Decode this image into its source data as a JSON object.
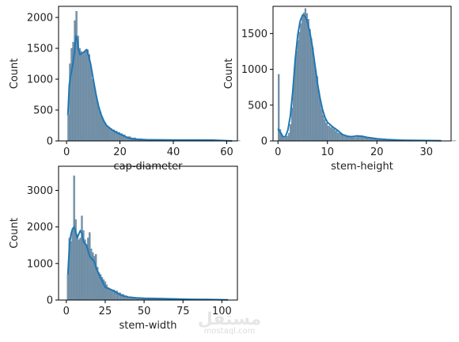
{
  "watermark": {
    "logo": "مستقل",
    "site": "mostaql.com"
  },
  "colors": {
    "bar_fill": "#7895ab",
    "bar_stroke": "#5c7e98",
    "kde": "#1f77b4",
    "axes": "#000000"
  },
  "chart_data": [
    {
      "type": "histogram",
      "xlabel": "cap-diameter",
      "ylabel": "Count",
      "xlim": [
        -3,
        64
      ],
      "ylim": [
        0,
        2180
      ],
      "xticks": [
        0,
        20,
        40,
        60
      ],
      "yticks": [
        0,
        500,
        1000,
        1500,
        2000
      ],
      "bins": [
        [
          0.4,
          420
        ],
        [
          1.0,
          1250
        ],
        [
          1.6,
          1500
        ],
        [
          2.2,
          1600
        ],
        [
          2.8,
          1950
        ],
        [
          3.4,
          2100
        ],
        [
          4.0,
          1700
        ],
        [
          4.6,
          1500
        ],
        [
          5.2,
          1450
        ],
        [
          5.8,
          1400
        ],
        [
          6.4,
          1450
        ],
        [
          7.0,
          1450
        ],
        [
          7.6,
          1480
        ],
        [
          8.2,
          1400
        ],
        [
          8.8,
          1200
        ],
        [
          9.4,
          1000
        ],
        [
          10.0,
          900
        ],
        [
          10.6,
          760
        ],
        [
          11.2,
          640
        ],
        [
          11.8,
          540
        ],
        [
          12.4,
          470
        ],
        [
          13.0,
          390
        ],
        [
          13.6,
          330
        ],
        [
          14.2,
          290
        ],
        [
          14.8,
          250
        ],
        [
          15.4,
          220
        ],
        [
          16.0,
          200
        ],
        [
          17.0,
          180
        ],
        [
          18.0,
          160
        ],
        [
          19.0,
          140
        ],
        [
          20.0,
          120
        ],
        [
          21.0,
          100
        ],
        [
          22.0,
          70
        ],
        [
          24.0,
          50
        ],
        [
          26.0,
          35
        ],
        [
          28.0,
          25
        ],
        [
          32.0,
          15
        ],
        [
          36.0,
          10
        ],
        [
          40.0,
          8
        ],
        [
          45.0,
          10
        ],
        [
          50.0,
          15
        ],
        [
          55.0,
          10
        ],
        [
          60.0,
          5
        ]
      ],
      "kde": [
        [
          0.5,
          420
        ],
        [
          1,
          900
        ],
        [
          1.5,
          1050
        ],
        [
          2,
          1150
        ],
        [
          2.5,
          1280
        ],
        [
          3,
          1450
        ],
        [
          3.5,
          1700
        ],
        [
          4,
          1640
        ],
        [
          4.5,
          1480
        ],
        [
          5,
          1400
        ],
        [
          6,
          1420
        ],
        [
          7,
          1460
        ],
        [
          7.5,
          1480
        ],
        [
          8,
          1420
        ],
        [
          9,
          1250
        ],
        [
          10,
          1000
        ],
        [
          11,
          760
        ],
        [
          12,
          560
        ],
        [
          13,
          420
        ],
        [
          14,
          320
        ],
        [
          15,
          250
        ],
        [
          17,
          180
        ],
        [
          19,
          130
        ],
        [
          21,
          90
        ],
        [
          23,
          50
        ],
        [
          25,
          30
        ],
        [
          30,
          20
        ],
        [
          40,
          15
        ],
        [
          50,
          15
        ],
        [
          55,
          12
        ],
        [
          62,
          0
        ]
      ]
    },
    {
      "type": "histogram",
      "xlabel": "stem-height",
      "ylabel": "Count",
      "xlim": [
        -1,
        35
      ],
      "ylim": [
        0,
        1880
      ],
      "xticks": [
        0,
        10,
        20,
        30
      ],
      "yticks": [
        0,
        500,
        1000,
        1500
      ],
      "bins": [
        [
          0.0,
          930
        ],
        [
          0.3,
          160
        ],
        [
          0.6,
          100
        ],
        [
          0.9,
          60
        ],
        [
          1.2,
          40
        ],
        [
          1.5,
          60
        ],
        [
          1.8,
          70
        ],
        [
          2.1,
          110
        ],
        [
          2.4,
          230
        ],
        [
          2.7,
          460
        ],
        [
          3.0,
          780
        ],
        [
          3.3,
          1050
        ],
        [
          3.6,
          1250
        ],
        [
          3.9,
          1400
        ],
        [
          4.2,
          1520
        ],
        [
          4.5,
          1640
        ],
        [
          4.8,
          1730
        ],
        [
          5.1,
          1790
        ],
        [
          5.4,
          1850
        ],
        [
          5.7,
          1780
        ],
        [
          6.0,
          1700
        ],
        [
          6.3,
          1560
        ],
        [
          6.6,
          1430
        ],
        [
          6.9,
          1300
        ],
        [
          7.2,
          1100
        ],
        [
          7.5,
          980
        ],
        [
          7.8,
          900
        ],
        [
          8.1,
          700
        ],
        [
          8.4,
          560
        ],
        [
          8.7,
          440
        ],
        [
          9.0,
          360
        ],
        [
          9.3,
          300
        ],
        [
          9.6,
          250
        ],
        [
          10.0,
          210
        ],
        [
          10.5,
          190
        ],
        [
          11.0,
          170
        ],
        [
          11.5,
          140
        ],
        [
          12.0,
          110
        ],
        [
          13.0,
          80
        ],
        [
          14.0,
          60
        ],
        [
          15.0,
          50
        ],
        [
          16.0,
          60
        ],
        [
          17.0,
          50
        ],
        [
          18.0,
          40
        ],
        [
          19.0,
          30
        ],
        [
          20.0,
          25
        ],
        [
          22.0,
          15
        ],
        [
          25.0,
          10
        ],
        [
          30.0,
          5
        ],
        [
          33.0,
          3
        ]
      ],
      "kde": [
        [
          0,
          170
        ],
        [
          0.5,
          120
        ],
        [
          1,
          60
        ],
        [
          1.5,
          60
        ],
        [
          2,
          150
        ],
        [
          2.5,
          350
        ],
        [
          3,
          700
        ],
        [
          3.5,
          1150
        ],
        [
          4,
          1480
        ],
        [
          4.5,
          1680
        ],
        [
          5,
          1760
        ],
        [
          5.5,
          1740
        ],
        [
          6,
          1650
        ],
        [
          6.5,
          1500
        ],
        [
          7,
          1300
        ],
        [
          7.5,
          1050
        ],
        [
          8,
          800
        ],
        [
          8.5,
          600
        ],
        [
          9,
          440
        ],
        [
          9.5,
          330
        ],
        [
          10,
          260
        ],
        [
          11,
          200
        ],
        [
          12,
          150
        ],
        [
          13,
          90
        ],
        [
          14,
          65
        ],
        [
          15,
          60
        ],
        [
          16,
          70
        ],
        [
          17,
          65
        ],
        [
          18,
          50
        ],
        [
          20,
          30
        ],
        [
          22,
          20
        ],
        [
          25,
          10
        ],
        [
          30,
          5
        ],
        [
          33,
          3
        ]
      ]
    },
    {
      "type": "histogram",
      "xlabel": "stem-width",
      "ylabel": "Count",
      "xlim": [
        -5,
        110
      ],
      "ylim": [
        0,
        3660
      ],
      "xticks": [
        0,
        25,
        50,
        75,
        100
      ],
      "yticks": [
        0,
        1000,
        2000,
        3000
      ],
      "bins": [
        [
          0.5,
          700
        ],
        [
          1.5,
          1700
        ],
        [
          2.5,
          1600
        ],
        [
          3.5,
          1900
        ],
        [
          4.5,
          3400
        ],
        [
          5.5,
          2200
        ],
        [
          6.5,
          1800
        ],
        [
          7.5,
          1650
        ],
        [
          8.5,
          1700
        ],
        [
          9.5,
          2300
        ],
        [
          10.5,
          1900
        ],
        [
          11.5,
          1650
        ],
        [
          12.5,
          1500
        ],
        [
          13.5,
          1700
        ],
        [
          14.5,
          1850
        ],
        [
          15.5,
          1400
        ],
        [
          16.5,
          1300
        ],
        [
          17.5,
          1200
        ],
        [
          18.5,
          1250
        ],
        [
          19.5,
          900
        ],
        [
          20.5,
          750
        ],
        [
          21.5,
          700
        ],
        [
          22.5,
          620
        ],
        [
          23.5,
          560
        ],
        [
          24.5,
          500
        ],
        [
          25.5,
          420
        ],
        [
          26.5,
          340
        ],
        [
          27.5,
          300
        ],
        [
          28.5,
          290
        ],
        [
          29.5,
          280
        ],
        [
          31.0,
          250
        ],
        [
          33.0,
          200
        ],
        [
          35.0,
          160
        ],
        [
          37.0,
          120
        ],
        [
          39.0,
          90
        ],
        [
          42.0,
          70
        ],
        [
          45.0,
          55
        ],
        [
          50.0,
          45
        ],
        [
          55.0,
          40
        ],
        [
          60.0,
          35
        ],
        [
          65.0,
          30
        ],
        [
          70.0,
          25
        ],
        [
          75.0,
          20
        ],
        [
          80.0,
          18
        ],
        [
          90.0,
          12
        ],
        [
          100.0,
          8
        ],
        [
          104.0,
          5
        ]
      ],
      "kde": [
        [
          1,
          700
        ],
        [
          2,
          1500
        ],
        [
          3,
          1800
        ],
        [
          4,
          1950
        ],
        [
          5,
          2000
        ],
        [
          6,
          1850
        ],
        [
          7,
          1700
        ],
        [
          8,
          1800
        ],
        [
          9,
          1900
        ],
        [
          10,
          1820
        ],
        [
          11,
          1600
        ],
        [
          12,
          1550
        ],
        [
          13,
          1500
        ],
        [
          15,
          1200
        ],
        [
          17,
          1100
        ],
        [
          18,
          1050
        ],
        [
          19,
          900
        ],
        [
          21,
          700
        ],
        [
          23,
          520
        ],
        [
          25,
          350
        ],
        [
          28,
          300
        ],
        [
          30,
          260
        ],
        [
          33,
          180
        ],
        [
          36,
          120
        ],
        [
          40,
          80
        ],
        [
          45,
          60
        ],
        [
          50,
          50
        ],
        [
          60,
          40
        ],
        [
          70,
          30
        ],
        [
          80,
          20
        ],
        [
          90,
          15
        ],
        [
          100,
          8
        ],
        [
          104,
          5
        ]
      ]
    }
  ]
}
